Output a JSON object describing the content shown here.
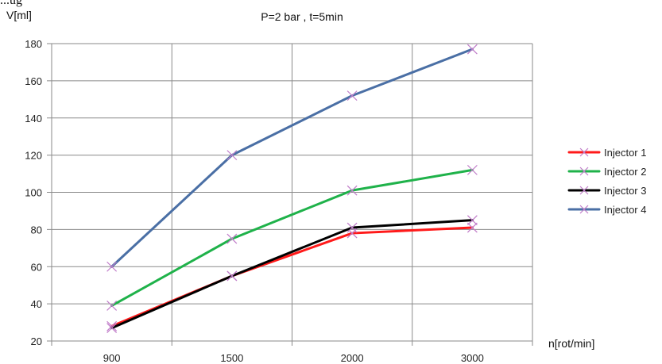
{
  "header_fragment": "...ug",
  "chart_data": {
    "type": "line",
    "title": "P=2 bar , t=5min",
    "xlabel": "n[rot/min]",
    "ylabel": "V[ml]",
    "categories": [
      "900",
      "1500",
      "2000",
      "3000"
    ],
    "ylim": [
      20,
      180
    ],
    "y_ticks": [
      "20",
      "40",
      "60",
      "80",
      "100",
      "120",
      "140",
      "160",
      "180"
    ],
    "grid": true,
    "legend_position": "right",
    "series": [
      {
        "name": "Injector 1",
        "color": "#ff1a1a",
        "values": [
          28,
          55,
          78,
          81
        ]
      },
      {
        "name": "Injector 2",
        "color": "#1fb24a",
        "values": [
          39,
          75,
          101,
          112
        ]
      },
      {
        "name": "Injector 3",
        "color": "#000000",
        "values": [
          27,
          55,
          81,
          85
        ]
      },
      {
        "name": "Injector 4",
        "color": "#4a6fa5",
        "values": [
          60,
          120,
          152,
          177
        ]
      }
    ]
  }
}
